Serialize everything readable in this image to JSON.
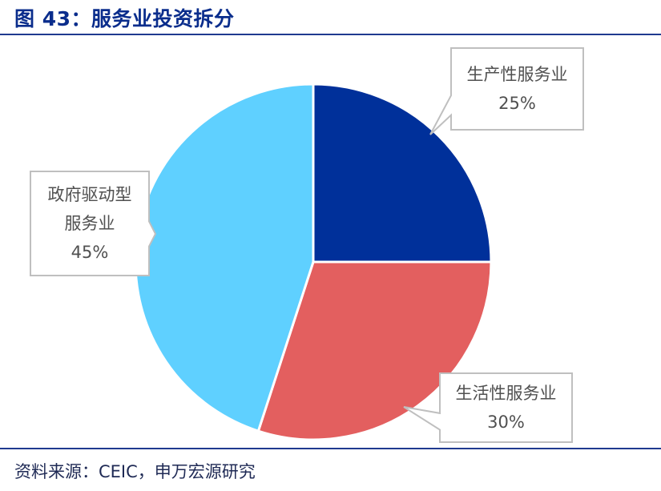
{
  "header": {
    "figure_title": "图 43：服务业投资拆分"
  },
  "footer": {
    "source_text": "资料来源：CEIC，申万宏源研究"
  },
  "chart_data": {
    "type": "pie",
    "title": "",
    "start_angle_deg": 0,
    "direction": "clockwise",
    "slices": [
      {
        "label_lines": [
          "生产性服务业"
        ],
        "value_text": "25%",
        "value": 25,
        "color": "#00309a"
      },
      {
        "label_lines": [
          "生活性服务业"
        ],
        "value_text": "30%",
        "value": 30,
        "color": "#e35f5f"
      },
      {
        "label_lines": [
          "政府驱动型",
          "服务业"
        ],
        "value_text": "45%",
        "value": 45,
        "color": "#5fd0ff"
      }
    ],
    "legend": "none",
    "callout_style": {
      "border_color": "#bfbfbf",
      "fill": "#ffffff"
    }
  }
}
